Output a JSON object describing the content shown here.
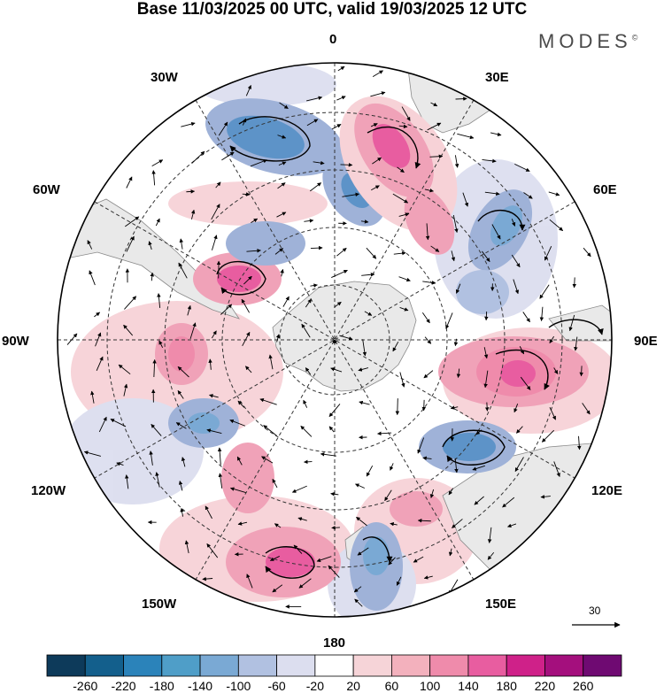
{
  "title": "Base 11/03/2025 00 UTC, valid 19/03/2025 12 UTC",
  "brand": {
    "name": "MODES",
    "mark": "©"
  },
  "longitude_labels": {
    "lon_0": "0",
    "lon_30e": "30E",
    "lon_60e": "60E",
    "lon_90e": "90E",
    "lon_120e": "120E",
    "lon_150e": "150E",
    "lon_180": "180",
    "lon_150w": "150W",
    "lon_120w": "120W",
    "lon_90w": "90W",
    "lon_60w": "60W",
    "lon_30w": "30W"
  },
  "vector_scale": {
    "value": "30"
  },
  "colorbar": {
    "labels": [
      "-260",
      "-220",
      "-180",
      "-140",
      "-100",
      "-60",
      "-20",
      "20",
      "60",
      "100",
      "140",
      "180",
      "220",
      "260"
    ],
    "colors": [
      "#0d3a5a",
      "#135f8c",
      "#2b83ba",
      "#4f9ec8",
      "#7aa9d4",
      "#b1c1e1",
      "#dcdeef",
      "#ffffff",
      "#f6d4d8",
      "#f3b1bd",
      "#ef8bab",
      "#e85da0",
      "#cf2189",
      "#a40f7d",
      "#6f0a72"
    ]
  },
  "colors": {
    "land": "#e9e9e9",
    "blue_strong": "#5d93c8",
    "blue_mid": "#9fb2d8",
    "blue_light": "#d9ddee",
    "pink_strong": "#e85da0",
    "pink_mid": "#f0a2b8",
    "pink_light": "#f7d2d7"
  },
  "map_features": {
    "anomaly_centers": [
      {
        "name": "blob-neg-south-atlantic",
        "sign": "negative"
      },
      {
        "name": "blob-pos-0-meridian",
        "sign": "positive"
      },
      {
        "name": "blob-pos-drake-passage",
        "sign": "positive"
      },
      {
        "name": "blob-pos-90e",
        "sign": "positive"
      },
      {
        "name": "blob-neg-120e",
        "sign": "negative"
      },
      {
        "name": "blob-pos-150w",
        "sign": "positive"
      },
      {
        "name": "blob-neg-180",
        "sign": "negative"
      }
    ]
  }
}
